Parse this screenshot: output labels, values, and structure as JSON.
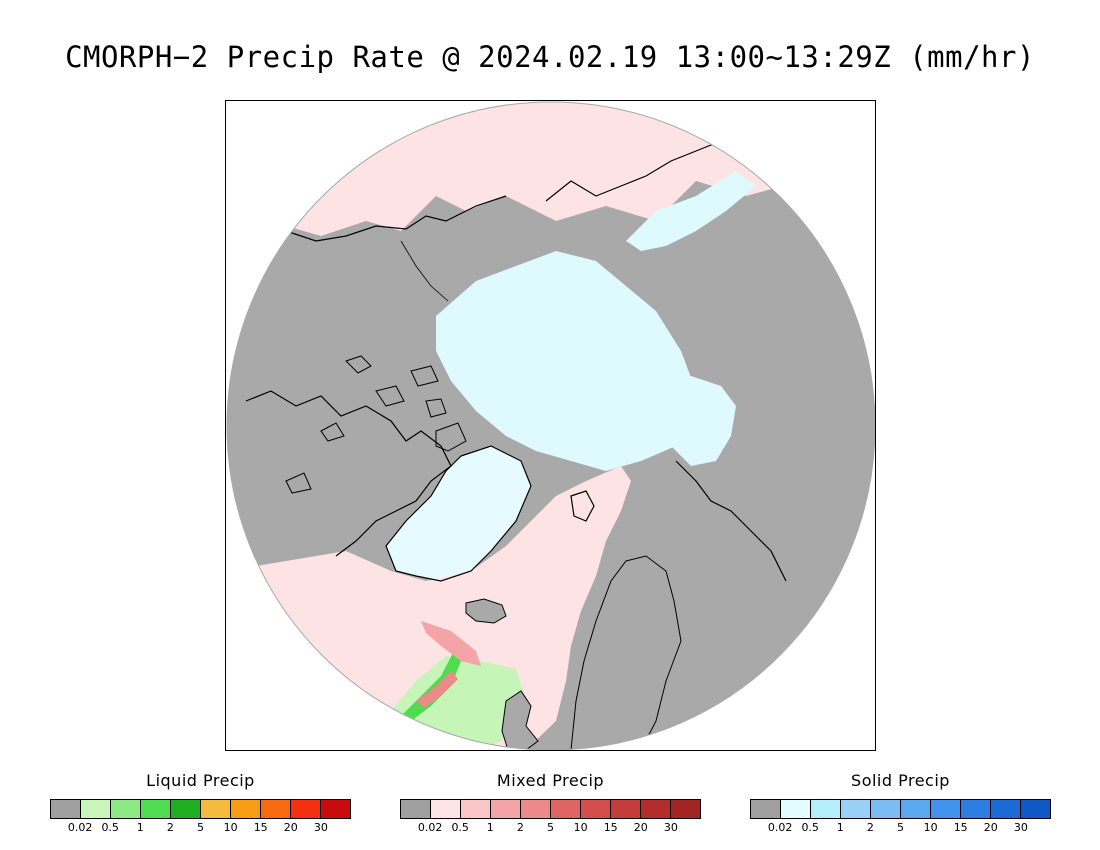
{
  "title": "CMORPH−2 Precip Rate @ 2024.02.19 13:00~13:29Z (mm/hr)",
  "map": {
    "projection": "north-polar-stereographic",
    "land_no_precip_color": "#a9a9a9",
    "mixed_light_color": "#fde3e3",
    "solid_light_color": "#dffaff",
    "liquid_light_color": "#c6f5b8",
    "coastline_color": "#000000"
  },
  "legends": [
    {
      "title": "Liquid Precip",
      "colors": [
        "#a0a0a0",
        "#c8f5b8",
        "#8ee884",
        "#4fdc50",
        "#1fb022",
        "#f5bb3c",
        "#f89c14",
        "#f86a10",
        "#f43010",
        "#c80c0c"
      ],
      "ticks": [
        "0.02",
        "0.5",
        "1",
        "2",
        "5",
        "10",
        "15",
        "20",
        "30"
      ]
    },
    {
      "title": "Mixed Precip",
      "colors": [
        "#a0a0a0",
        "#ffe4e6",
        "#fcc6c8",
        "#f4a4a6",
        "#ec8a8a",
        "#e06464",
        "#d44e4e",
        "#c43c3c",
        "#b42c2c",
        "#a42424"
      ],
      "ticks": [
        "0.02",
        "0.5",
        "1",
        "2",
        "5",
        "10",
        "15",
        "20",
        "30"
      ]
    },
    {
      "title": "Solid Precip",
      "colors": [
        "#a0a0a0",
        "#e2fcff",
        "#b4eefc",
        "#98d0f8",
        "#7cbcf4",
        "#5aa8f0",
        "#4092ec",
        "#2c7ee4",
        "#1c6ad8",
        "#1058c8"
      ],
      "ticks": [
        "0.02",
        "0.5",
        "1",
        "2",
        "5",
        "10",
        "15",
        "20",
        "30"
      ]
    }
  ]
}
